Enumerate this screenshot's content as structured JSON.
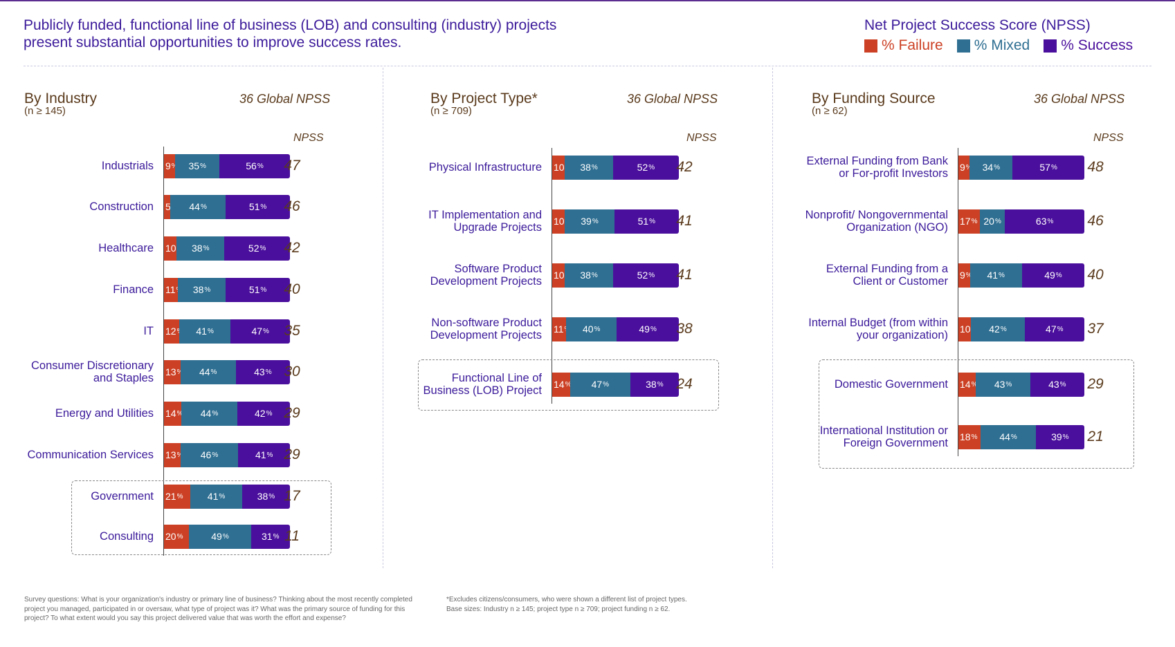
{
  "title": "Publicly funded, functional line of business (LOB) and consulting (industry) projects present substantial opportunities to improve success rates.",
  "legend": {
    "title": "Net Project Success Score (NPSS)",
    "items": [
      {
        "label": "% Failure",
        "color": "#cc4125"
      },
      {
        "label": "% Mixed",
        "color": "#2f6f92"
      },
      {
        "label": "% Success",
        "color": "#4a0f9c"
      }
    ]
  },
  "footnotes": {
    "left": "Survey questions: What is your organization's industry or primary line of business? Thinking about the most recently completed project you managed, participated in or oversaw, what type of project was it? What was the primary source of funding for this project? To what extent would you say this project delivered value that was worth the effort and expense?",
    "right_line1": "*Excludes citizens/consumers, who were shown a different list of project types.",
    "right_line2": "Base sizes: Industry n ≥ 145; project type n ≥ 709; project funding n ≥ 62."
  },
  "chart_data": [
    {
      "type": "bar",
      "stacked": true,
      "orientation": "horizontal",
      "title": "By Industry",
      "subtitle": "(n ≥ 145)",
      "global_npss": "36 Global NPSS",
      "npss_header": "NPSS",
      "categories": [
        "Industrials",
        "Construction",
        "Healthcare",
        "Finance",
        "IT",
        "Consumer Discretionary and Staples",
        "Energy and Utilities",
        "Communication Services",
        "Government",
        "Consulting"
      ],
      "series": [
        {
          "name": "% Failure",
          "values": [
            9,
            5,
            10,
            11,
            12,
            13,
            14,
            13,
            21,
            20
          ]
        },
        {
          "name": "% Mixed",
          "values": [
            35,
            44,
            38,
            38,
            41,
            44,
            44,
            46,
            41,
            49
          ]
        },
        {
          "name": "% Success",
          "values": [
            56,
            51,
            52,
            51,
            47,
            43,
            42,
            41,
            38,
            31
          ]
        }
      ],
      "npss": [
        47,
        46,
        42,
        40,
        35,
        30,
        29,
        29,
        17,
        11
      ],
      "highlighted": [
        "Government",
        "Consulting"
      ]
    },
    {
      "type": "bar",
      "stacked": true,
      "orientation": "horizontal",
      "title": "By Project Type*",
      "subtitle": "(n ≥ 709)",
      "global_npss": "36 Global NPSS",
      "npss_header": "NPSS",
      "categories": [
        "Physical Infrastructure",
        "IT Implementation and Upgrade Projects",
        "Software Product Development Projects",
        "Non-software Product Development Projects",
        "Functional Line of Business (LOB) Project"
      ],
      "series": [
        {
          "name": "% Failure",
          "values": [
            10,
            10,
            10,
            11,
            14
          ]
        },
        {
          "name": "% Mixed",
          "values": [
            38,
            39,
            38,
            40,
            47
          ]
        },
        {
          "name": "% Success",
          "values": [
            52,
            51,
            52,
            49,
            38
          ]
        }
      ],
      "npss": [
        42,
        41,
        41,
        38,
        24
      ],
      "highlighted": [
        "Functional Line of Business (LOB) Project"
      ]
    },
    {
      "type": "bar",
      "stacked": true,
      "orientation": "horizontal",
      "title": "By Funding Source",
      "subtitle": "(n ≥ 62)",
      "global_npss": "36 Global NPSS",
      "npss_header": "NPSS",
      "categories": [
        "External Funding from Bank or For-profit Investors",
        "Nonprofit/ Nongovernmental Organization (NGO)",
        "External Funding from a Client or Customer",
        "Internal Budget (from within your organization)",
        "Domestic Government",
        "International Institution or Foreign Government"
      ],
      "series": [
        {
          "name": "% Failure",
          "values": [
            9,
            17,
            9,
            10,
            14,
            18
          ]
        },
        {
          "name": "% Mixed",
          "values": [
            34,
            20,
            41,
            42,
            43,
            44
          ]
        },
        {
          "name": "% Success",
          "values": [
            57,
            63,
            49,
            47,
            43,
            39
          ]
        }
      ],
      "npss": [
        48,
        46,
        40,
        37,
        29,
        21
      ],
      "highlighted": [
        "Domestic Government",
        "International Institution or Foreign Government"
      ]
    }
  ]
}
